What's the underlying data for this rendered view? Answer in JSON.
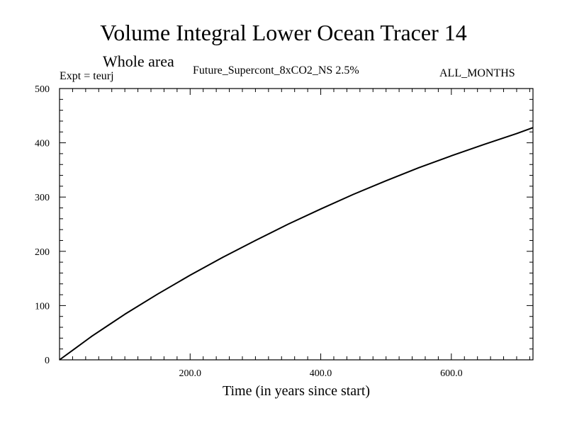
{
  "header": {
    "title": "Volume Integral Lower Ocean Tracer 14",
    "subtitle": "Whole area",
    "expt": "Expt = teurj",
    "experiment_name": "Future_Supercont_8xCO2_NS 2.5%",
    "months": "ALL_MONTHS"
  },
  "chart_data": {
    "type": "line",
    "title": "Volume Integral Lower Ocean Tracer 14",
    "subtitle": "Whole area",
    "xlabel": "Time (in years since start)",
    "ylabel": "",
    "xlim": [
      0,
      725
    ],
    "ylim": [
      0,
      500
    ],
    "x_ticks": [
      200,
      400,
      600
    ],
    "x_tick_labels": [
      "200.0",
      "400.0",
      "600.0"
    ],
    "y_ticks": [
      0,
      100,
      200,
      300,
      400,
      500
    ],
    "y_tick_labels": [
      "0",
      "100",
      "200",
      "300",
      "400",
      "500"
    ],
    "grid": false,
    "series": [
      {
        "x": [
          0,
          25,
          50,
          75,
          100,
          150,
          200,
          250,
          300,
          350,
          400,
          450,
          500,
          550,
          600,
          650,
          700,
          725
        ],
        "y": [
          0,
          22,
          44,
          64,
          84,
          121,
          156,
          189,
          220,
          250,
          278,
          305,
          330,
          354,
          376,
          397,
          417,
          428
        ],
        "color": "#000000"
      }
    ]
  }
}
